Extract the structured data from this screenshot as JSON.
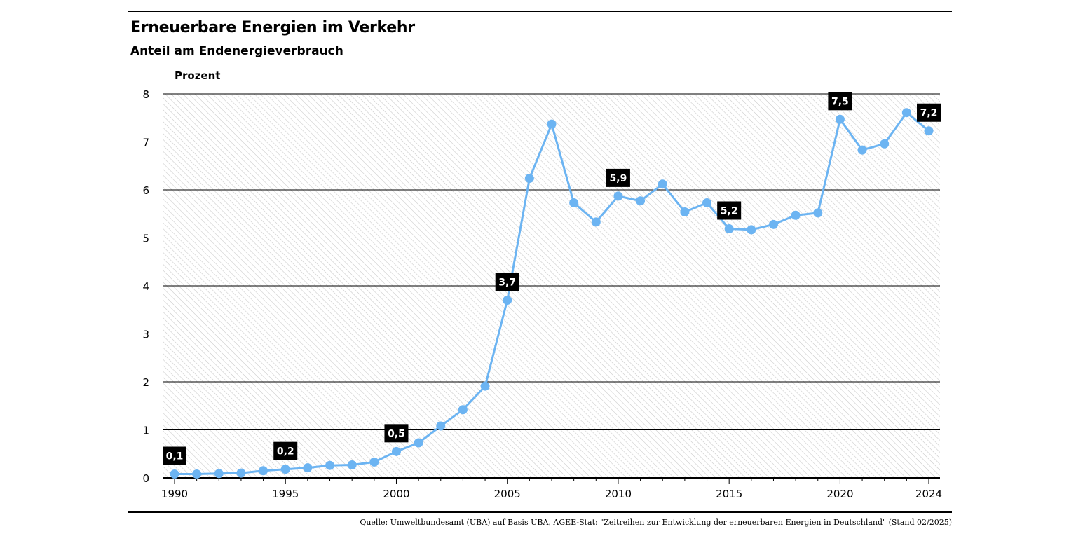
{
  "title": "Erneuerbare Energien im Verkehr",
  "subtitle": "Anteil am Endenergieverbrauch",
  "source": "Quelle: Umweltbundesamt (UBA) auf Basis UBA, AGEE-Stat: \"Zeitreihen zur Entwicklung der erneuerbaren Energien in Deutschland\" (Stand 02/2025)",
  "chart_data": {
    "type": "line",
    "title": "Erneuerbare Energien im Verkehr",
    "subtitle": "Anteil am Endenergieverbrauch",
    "ylabel": "Prozent",
    "xlabel": "",
    "ylim": [
      0,
      8
    ],
    "yticks": [
      0,
      1,
      2,
      3,
      4,
      5,
      6,
      7,
      8
    ],
    "xticks": [
      1990,
      1995,
      2000,
      2005,
      2010,
      2015,
      2020,
      2024
    ],
    "grid": true,
    "line_color": "#6cb4f2",
    "x": [
      1990,
      1991,
      1992,
      1993,
      1994,
      1995,
      1996,
      1997,
      1998,
      1999,
      2000,
      2001,
      2002,
      2003,
      2004,
      2005,
      2006,
      2007,
      2008,
      2009,
      2010,
      2011,
      2012,
      2013,
      2014,
      2015,
      2016,
      2017,
      2018,
      2019,
      2020,
      2021,
      2022,
      2023,
      2024
    ],
    "series": [
      {
        "values": [
          0.08,
          0.08,
          0.09,
          0.1,
          0.15,
          0.18,
          0.21,
          0.26,
          0.27,
          0.33,
          0.55,
          0.73,
          1.08,
          1.42,
          1.91,
          3.7,
          6.24,
          7.37,
          5.73,
          5.33,
          5.87,
          5.77,
          6.12,
          5.54,
          5.73,
          5.19,
          5.17,
          5.28,
          5.47,
          5.52,
          7.47,
          6.83,
          6.96,
          7.61,
          7.23
        ]
      }
    ],
    "data_labels": [
      {
        "x": 1990,
        "text": "0,1"
      },
      {
        "x": 1995,
        "text": "0,2"
      },
      {
        "x": 2000,
        "text": "0,5"
      },
      {
        "x": 2005,
        "text": "3,7"
      },
      {
        "x": 2010,
        "text": "5,9"
      },
      {
        "x": 2015,
        "text": "5,2"
      },
      {
        "x": 2020,
        "text": "7,5"
      },
      {
        "x": 2024,
        "text": "7,2"
      }
    ]
  }
}
